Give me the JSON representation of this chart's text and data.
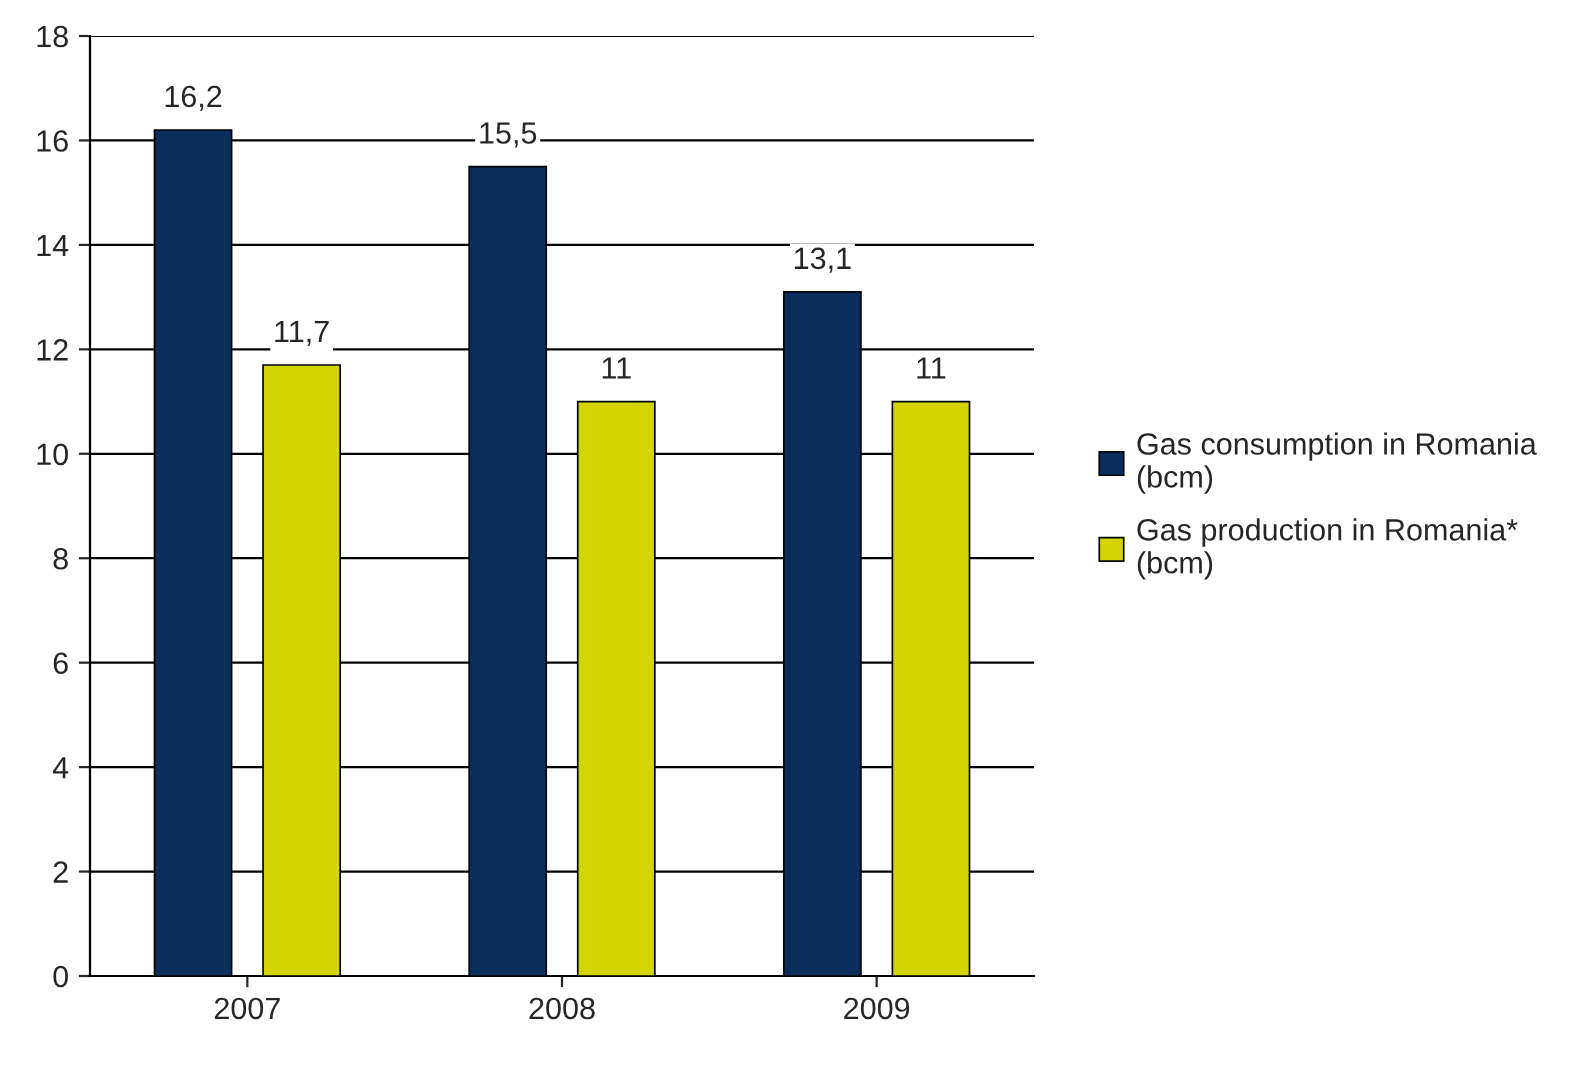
{
  "chart_data": {
    "type": "bar",
    "categories": [
      "2007",
      "2008",
      "2009"
    ],
    "series": [
      {
        "name": "Gas consumption in Romania (bcm)",
        "color": "#0a2f5c",
        "values": [
          16.2,
          15.5,
          13.1
        ],
        "value_labels": [
          "16,2",
          "15,5",
          "13,1"
        ]
      },
      {
        "name": "Gas production in Romania* (bcm)",
        "color": "#d4d400",
        "values": [
          11.7,
          11,
          11
        ],
        "value_labels": [
          "11,7",
          "11",
          "11"
        ]
      }
    ],
    "ylim": [
      0,
      18
    ],
    "yticks": [
      0,
      2,
      4,
      6,
      8,
      10,
      12,
      14,
      16,
      18
    ],
    "grid": "y",
    "legend": "right"
  }
}
